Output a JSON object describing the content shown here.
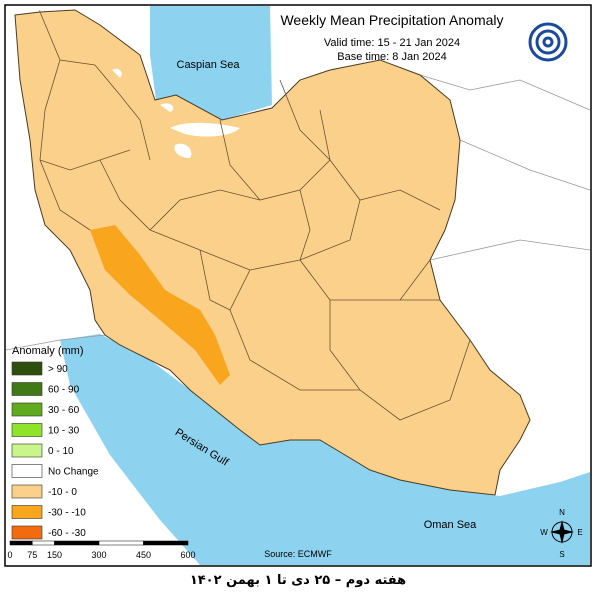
{
  "header": {
    "title": "Weekly Mean Precipitation Anomaly",
    "valid_time": "Valid time: 15 - 21 Jan 2024",
    "base_time": "Base time: 8 Jan 2024"
  },
  "map": {
    "caspian_sea": "Caspian Sea",
    "persian_gulf": "Persian Gulf",
    "oman_sea": "Oman Sea"
  },
  "legend": {
    "title": "Anomaly (mm)",
    "items": [
      {
        "label": "> 90",
        "color": "#2f4f0f"
      },
      {
        "label": "60 - 90",
        "color": "#3f7a16"
      },
      {
        "label": "30 - 60",
        "color": "#5faa1e"
      },
      {
        "label": "10 - 30",
        "color": "#8fe32a"
      },
      {
        "label": "0 - 10",
        "color": "#c9f58a"
      },
      {
        "label": "No Change",
        "color": "#ffffff"
      },
      {
        "label": "-10 - 0",
        "color": "#fbd08a"
      },
      {
        "label": "-30 - -10",
        "color": "#f9a51d"
      },
      {
        "label": "-60 - -30",
        "color": "#f46a0e"
      }
    ]
  },
  "scale_bar": {
    "ticks": [
      0,
      75,
      150,
      300,
      450,
      600
    ]
  },
  "source": "Source: ECMWF",
  "compass": {
    "n": "N",
    "e": "E",
    "s": "S",
    "w": "W"
  },
  "footer": "هفته دوم – ۲۵ دی تا ۱ بهمن ۱۴۰۲"
}
